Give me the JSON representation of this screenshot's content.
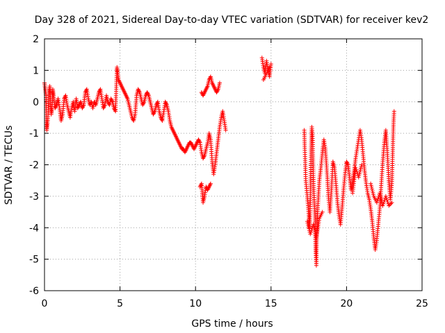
{
  "chart_data": {
    "type": "scatter",
    "title": "Day 328 of 2021, Sidereal Day-to-day VTEC variation (SDTVAR) for receiver kev2",
    "xlabel": "GPS time / hours",
    "ylabel": "SDTVAR / TECUs",
    "xlim": [
      0,
      25
    ],
    "ylim": [
      -6,
      2
    ],
    "xticks": [
      0,
      5,
      10,
      15,
      20,
      25
    ],
    "yticks": [
      2,
      1,
      0,
      -1,
      -2,
      -3,
      -4,
      -5,
      -6
    ],
    "grid": true,
    "marker": "+",
    "color": "#ff0000",
    "series": [
      {
        "name": "SDTVAR",
        "points": [
          [
            0.0,
            0.6
          ],
          [
            0.05,
            0.4
          ],
          [
            0.1,
            0.2
          ],
          [
            0.12,
            -0.6
          ],
          [
            0.15,
            -0.9
          ],
          [
            0.2,
            -0.7
          ],
          [
            0.25,
            -0.3
          ],
          [
            0.3,
            0.3
          ],
          [
            0.35,
            0.5
          ],
          [
            0.4,
            0.1
          ],
          [
            0.45,
            -0.4
          ],
          [
            0.5,
            -0.2
          ],
          [
            0.55,
            0.4
          ],
          [
            0.6,
            0.2
          ],
          [
            0.7,
            -0.2
          ],
          [
            0.8,
            -0.1
          ],
          [
            0.9,
            0.1
          ],
          [
            1.0,
            -0.2
          ],
          [
            1.1,
            -0.6
          ],
          [
            1.2,
            -0.4
          ],
          [
            1.3,
            0.1
          ],
          [
            1.4,
            0.2
          ],
          [
            1.5,
            -0.1
          ],
          [
            1.6,
            -0.3
          ],
          [
            1.7,
            -0.5
          ],
          [
            1.8,
            -0.2
          ],
          [
            1.9,
            0.0
          ],
          [
            2.0,
            -0.3
          ],
          [
            2.1,
            0.1
          ],
          [
            2.2,
            -0.2
          ],
          [
            2.3,
            -0.1
          ],
          [
            2.4,
            0.0
          ],
          [
            2.5,
            -0.2
          ],
          [
            2.6,
            -0.1
          ],
          [
            2.7,
            0.3
          ],
          [
            2.8,
            0.4
          ],
          [
            2.9,
            0.1
          ],
          [
            3.0,
            -0.1
          ],
          [
            3.1,
            0.0
          ],
          [
            3.2,
            -0.2
          ],
          [
            3.3,
            0.0
          ],
          [
            3.4,
            -0.1
          ],
          [
            3.5,
            0.1
          ],
          [
            3.6,
            0.3
          ],
          [
            3.7,
            0.4
          ],
          [
            3.8,
            0.1
          ],
          [
            3.9,
            -0.2
          ],
          [
            4.0,
            -0.1
          ],
          [
            4.1,
            0.2
          ],
          [
            4.2,
            0.0
          ],
          [
            4.3,
            -0.1
          ],
          [
            4.4,
            0.1
          ],
          [
            4.5,
            0.0
          ],
          [
            4.6,
            -0.2
          ],
          [
            4.7,
            -0.3
          ],
          [
            4.8,
            1.1
          ],
          [
            4.85,
            0.9
          ],
          [
            4.9,
            0.7
          ],
          [
            5.0,
            0.6
          ],
          [
            5.1,
            0.5
          ],
          [
            5.2,
            0.4
          ],
          [
            5.3,
            0.3
          ],
          [
            5.4,
            0.2
          ],
          [
            5.5,
            0.1
          ],
          [
            5.6,
            -0.1
          ],
          [
            5.7,
            -0.3
          ],
          [
            5.8,
            -0.5
          ],
          [
            5.9,
            -0.6
          ],
          [
            6.0,
            -0.4
          ],
          [
            6.1,
            0.2
          ],
          [
            6.2,
            0.4
          ],
          [
            6.3,
            0.3
          ],
          [
            6.4,
            0.1
          ],
          [
            6.5,
            -0.1
          ],
          [
            6.6,
            0.0
          ],
          [
            6.7,
            0.2
          ],
          [
            6.8,
            0.3
          ],
          [
            6.9,
            0.2
          ],
          [
            7.0,
            0.0
          ],
          [
            7.1,
            -0.2
          ],
          [
            7.2,
            -0.4
          ],
          [
            7.3,
            -0.3
          ],
          [
            7.4,
            -0.1
          ],
          [
            7.5,
            0.0
          ],
          [
            7.6,
            -0.3
          ],
          [
            7.7,
            -0.5
          ],
          [
            7.8,
            -0.6
          ],
          [
            7.9,
            -0.3
          ],
          [
            8.0,
            0.0
          ],
          [
            8.1,
            -0.1
          ],
          [
            8.2,
            -0.3
          ],
          [
            8.3,
            -0.6
          ],
          [
            8.4,
            -0.8
          ],
          [
            8.5,
            -0.9
          ],
          [
            8.6,
            -1.0
          ],
          [
            8.7,
            -1.1
          ],
          [
            8.8,
            -1.2
          ],
          [
            8.9,
            -1.3
          ],
          [
            9.0,
            -1.4
          ],
          [
            9.1,
            -1.5
          ],
          [
            9.2,
            -1.5
          ],
          [
            9.3,
            -1.6
          ],
          [
            9.4,
            -1.5
          ],
          [
            9.5,
            -1.4
          ],
          [
            9.6,
            -1.3
          ],
          [
            9.7,
            -1.3
          ],
          [
            9.8,
            -1.4
          ],
          [
            9.9,
            -1.5
          ],
          [
            10.0,
            -1.4
          ],
          [
            10.1,
            -1.3
          ],
          [
            10.2,
            -1.2
          ],
          [
            10.3,
            -1.3
          ],
          [
            10.4,
            -1.6
          ],
          [
            10.5,
            -1.8
          ],
          [
            10.6,
            -1.7
          ],
          [
            10.7,
            -1.5
          ],
          [
            10.8,
            -1.3
          ],
          [
            10.9,
            -1.0
          ],
          [
            11.0,
            -1.2
          ],
          [
            11.1,
            -1.9
          ],
          [
            11.2,
            -2.3
          ],
          [
            11.3,
            -2.0
          ],
          [
            11.4,
            -1.6
          ],
          [
            11.5,
            -1.2
          ],
          [
            11.6,
            -0.8
          ],
          [
            11.7,
            -0.5
          ],
          [
            11.8,
            -0.3
          ],
          [
            11.9,
            -0.6
          ],
          [
            12.0,
            -0.9
          ],
          [
            10.3,
            -2.7
          ],
          [
            10.4,
            -2.6
          ],
          [
            10.5,
            -3.2
          ],
          [
            10.6,
            -3.0
          ],
          [
            10.7,
            -2.7
          ],
          [
            10.8,
            -2.8
          ],
          [
            10.9,
            -2.7
          ],
          [
            11.0,
            -2.6
          ],
          [
            10.4,
            0.3
          ],
          [
            10.5,
            0.2
          ],
          [
            10.6,
            0.3
          ],
          [
            10.7,
            0.4
          ],
          [
            10.8,
            0.5
          ],
          [
            10.9,
            0.7
          ],
          [
            11.0,
            0.8
          ],
          [
            11.1,
            0.6
          ],
          [
            11.2,
            0.5
          ],
          [
            11.3,
            0.4
          ],
          [
            11.4,
            0.3
          ],
          [
            11.5,
            0.4
          ],
          [
            11.6,
            0.6
          ],
          [
            14.4,
            1.4
          ],
          [
            14.5,
            1.1
          ],
          [
            14.6,
            0.9
          ],
          [
            14.7,
            1.3
          ],
          [
            14.8,
            1.0
          ],
          [
            14.9,
            0.8
          ],
          [
            15.0,
            1.2
          ],
          [
            14.5,
            0.7
          ],
          [
            14.7,
            0.9
          ],
          [
            14.9,
            1.1
          ],
          [
            17.2,
            -0.9
          ],
          [
            17.3,
            -2.5
          ],
          [
            17.4,
            -3.0
          ],
          [
            17.5,
            -3.6
          ],
          [
            17.55,
            -4.0
          ],
          [
            17.6,
            -3.2
          ],
          [
            17.65,
            -1.5
          ],
          [
            17.7,
            -0.8
          ],
          [
            17.75,
            -1.1
          ],
          [
            17.8,
            -2.4
          ],
          [
            17.85,
            -3.1
          ],
          [
            17.9,
            -3.5
          ],
          [
            17.95,
            -4.7
          ],
          [
            18.0,
            -5.2
          ],
          [
            18.05,
            -3.9
          ],
          [
            18.1,
            -3.3
          ],
          [
            18.2,
            -2.5
          ],
          [
            18.3,
            -2.1
          ],
          [
            18.4,
            -1.6
          ],
          [
            18.5,
            -1.2
          ],
          [
            18.6,
            -1.5
          ],
          [
            18.7,
            -2.2
          ],
          [
            18.8,
            -3.0
          ],
          [
            18.9,
            -3.5
          ],
          [
            19.0,
            -2.8
          ],
          [
            19.1,
            -1.9
          ],
          [
            19.2,
            -2.1
          ],
          [
            19.3,
            -2.6
          ],
          [
            19.4,
            -3.2
          ],
          [
            19.5,
            -3.6
          ],
          [
            19.6,
            -3.9
          ],
          [
            19.7,
            -3.4
          ],
          [
            19.8,
            -2.8
          ],
          [
            19.9,
            -2.3
          ],
          [
            20.0,
            -1.9
          ],
          [
            20.1,
            -2.0
          ],
          [
            20.2,
            -2.4
          ],
          [
            20.3,
            -2.8
          ],
          [
            20.4,
            -2.6
          ],
          [
            20.5,
            -2.2
          ],
          [
            20.6,
            -1.8
          ],
          [
            20.7,
            -1.5
          ],
          [
            20.8,
            -1.2
          ],
          [
            20.9,
            -0.9
          ],
          [
            21.0,
            -1.2
          ],
          [
            21.1,
            -1.7
          ],
          [
            21.2,
            -2.2
          ],
          [
            21.3,
            -2.6
          ],
          [
            21.4,
            -2.9
          ],
          [
            21.5,
            -3.1
          ],
          [
            21.6,
            -3.4
          ],
          [
            21.7,
            -3.8
          ],
          [
            21.8,
            -4.3
          ],
          [
            21.9,
            -4.7
          ],
          [
            22.0,
            -4.4
          ],
          [
            22.1,
            -3.9
          ],
          [
            22.2,
            -3.4
          ],
          [
            22.3,
            -2.6
          ],
          [
            22.4,
            -1.9
          ],
          [
            22.5,
            -1.3
          ],
          [
            22.6,
            -0.9
          ],
          [
            22.7,
            -1.6
          ],
          [
            22.8,
            -2.5
          ],
          [
            22.9,
            -3.1
          ],
          [
            23.0,
            -2.6
          ],
          [
            23.05,
            -1.7
          ],
          [
            23.1,
            -0.8
          ],
          [
            23.15,
            -0.3
          ],
          [
            17.4,
            -3.8
          ],
          [
            17.6,
            -4.2
          ],
          [
            17.8,
            -3.9
          ],
          [
            18.0,
            -4.3
          ],
          [
            18.2,
            -3.7
          ],
          [
            18.4,
            -3.5
          ],
          [
            20.4,
            -2.9
          ],
          [
            20.6,
            -2.1
          ],
          [
            20.8,
            -2.4
          ],
          [
            21.0,
            -2.0
          ],
          [
            21.6,
            -2.6
          ],
          [
            21.8,
            -3.0
          ],
          [
            22.0,
            -3.2
          ],
          [
            22.2,
            -2.9
          ],
          [
            22.4,
            -3.3
          ],
          [
            22.6,
            -3.0
          ],
          [
            22.8,
            -3.3
          ],
          [
            23.0,
            -3.2
          ]
        ]
      }
    ]
  }
}
